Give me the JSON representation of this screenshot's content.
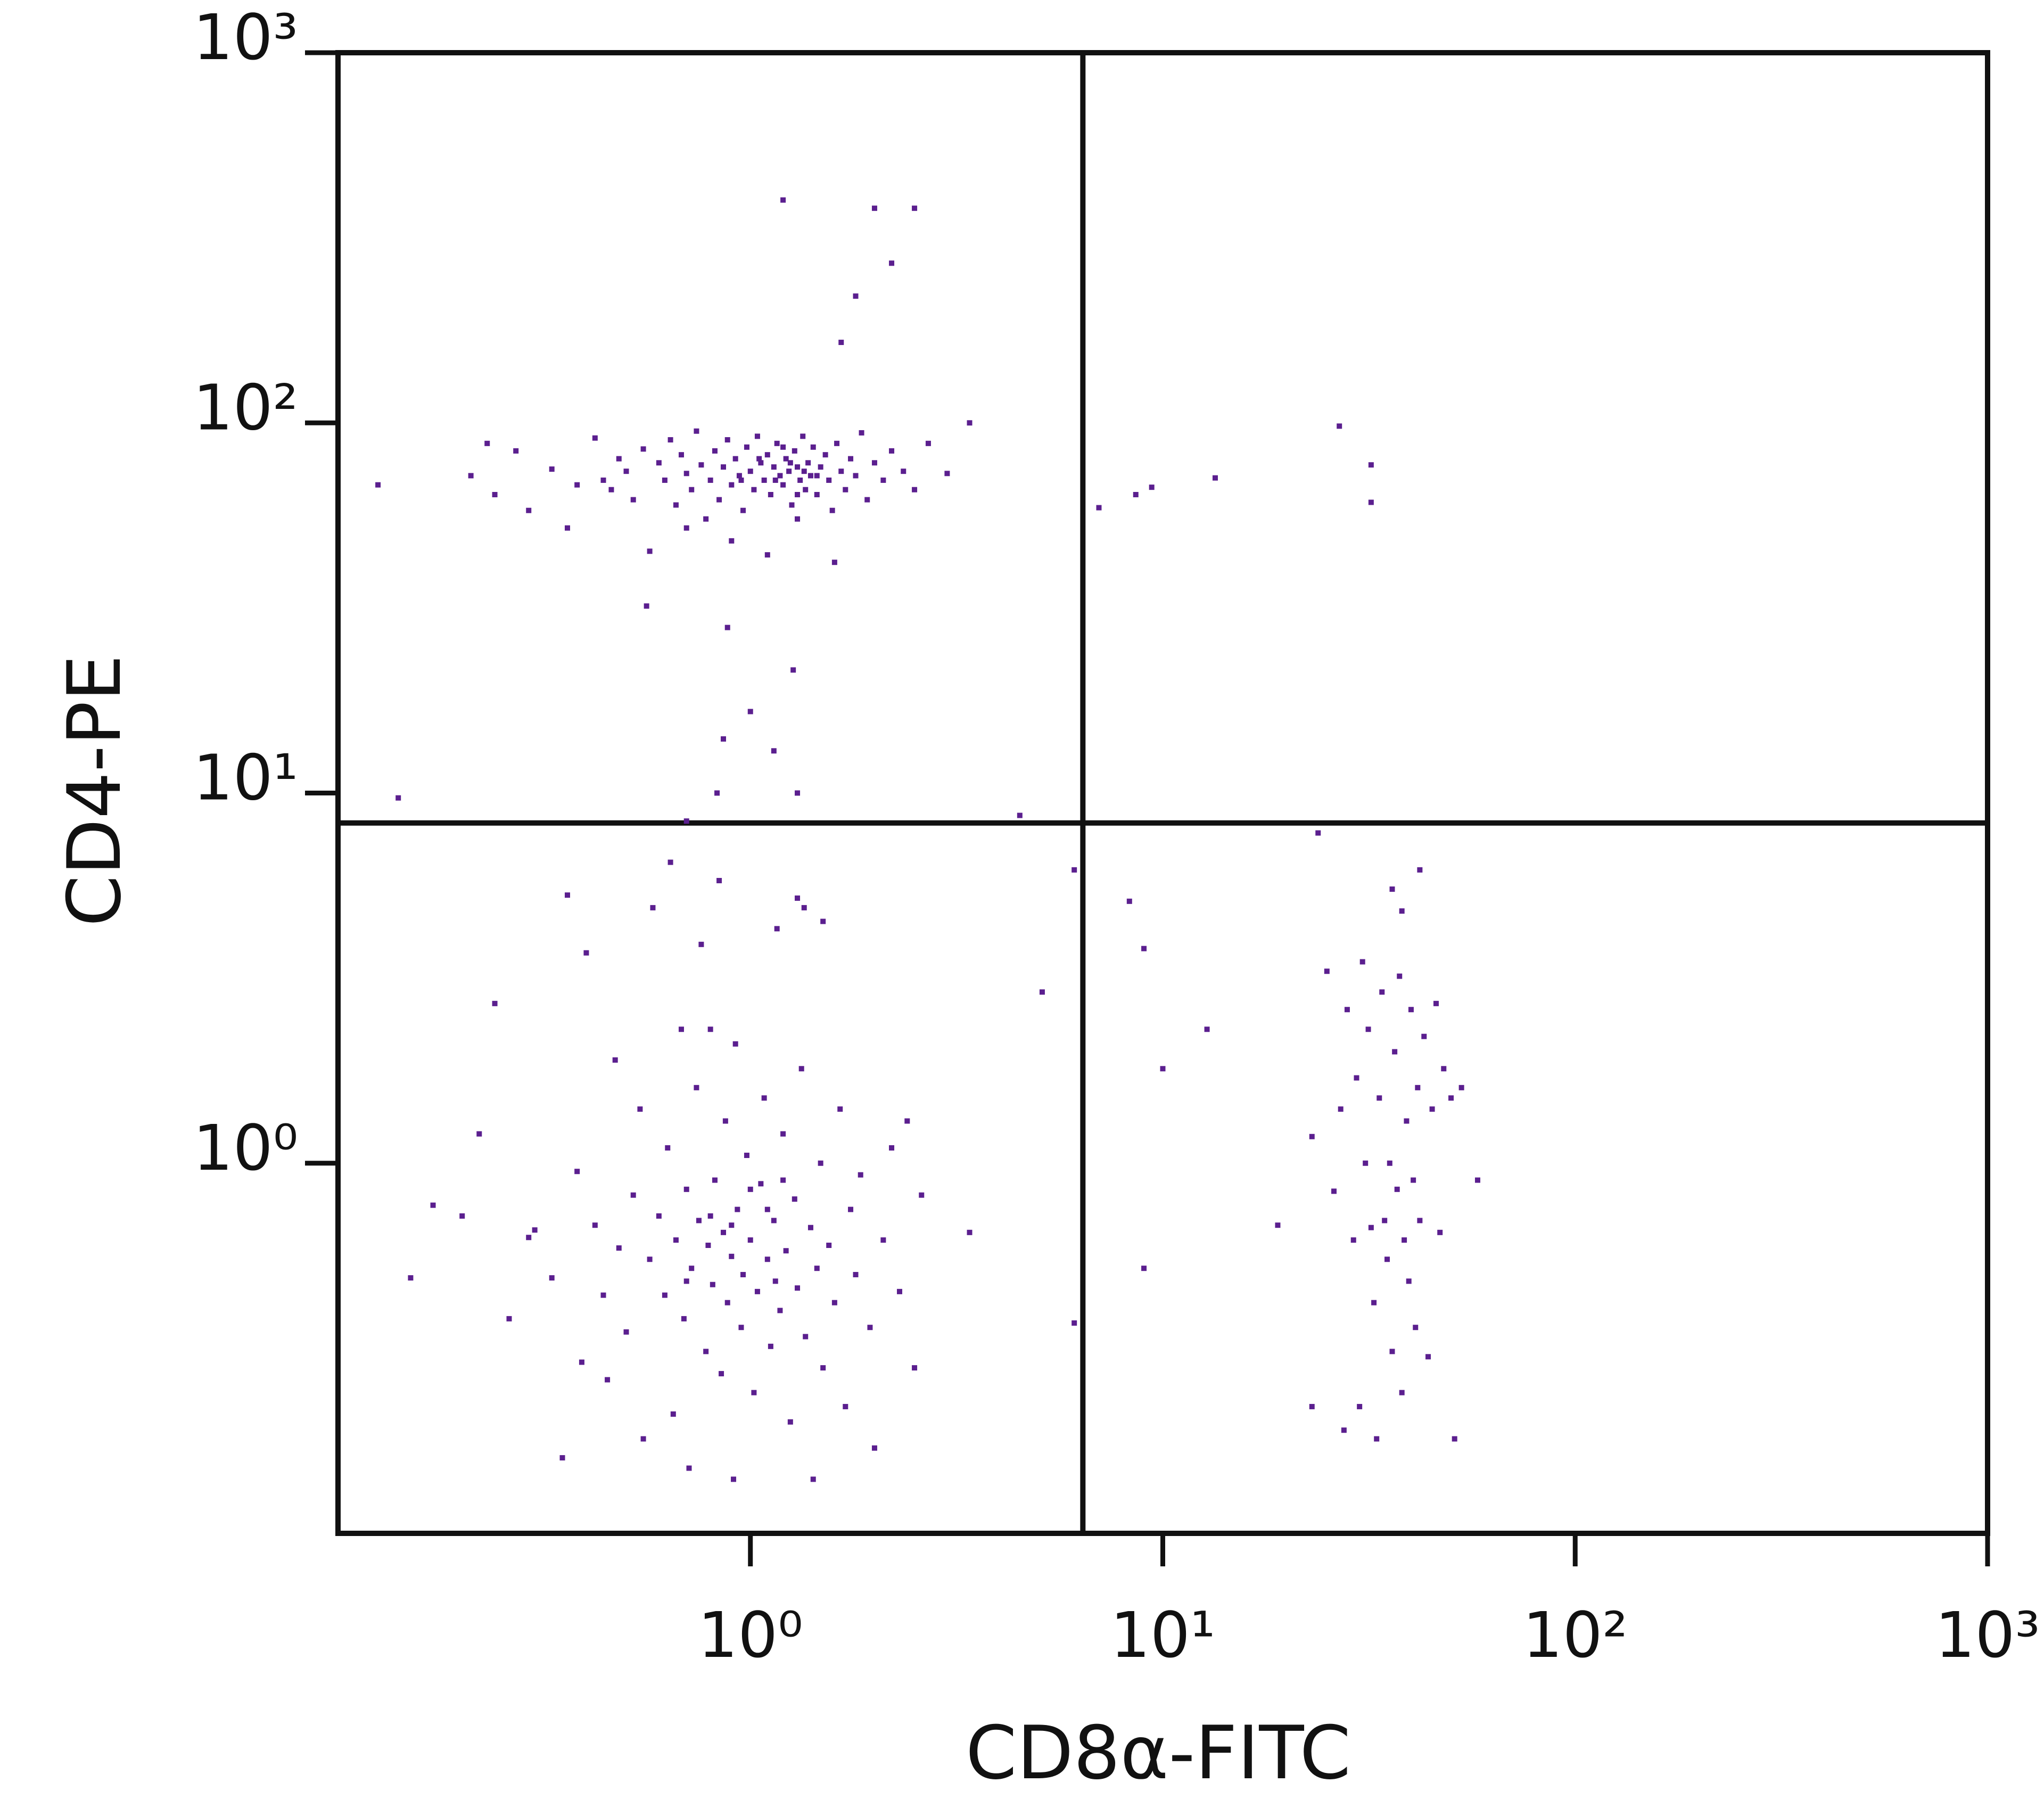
{
  "chart_data": {
    "type": "scatter",
    "x_label": "CD8α-FITC",
    "y_label": "CD4-PE",
    "xlim": [
      0.1,
      1000
    ],
    "ylim": [
      0.1,
      1000
    ],
    "xlog": true,
    "ylog": true,
    "xticks": [
      {
        "value": 1,
        "label": "10⁰"
      },
      {
        "value": 10,
        "label": "10¹"
      },
      {
        "value": 100,
        "label": "10²"
      },
      {
        "value": 1000,
        "label": "10³"
      }
    ],
    "yticks": [
      {
        "value": 1,
        "label": "10⁰"
      },
      {
        "value": 10,
        "label": "10¹"
      },
      {
        "value": 100,
        "label": "10²"
      },
      {
        "value": 1000,
        "label": "10³"
      }
    ],
    "gates": {
      "x": 6.4,
      "y": 8.3
    },
    "color": "#5b1f8f",
    "x": [
      0.21,
      0.23,
      0.24,
      0.27,
      0.29,
      0.33,
      0.36,
      0.38,
      0.42,
      0.44,
      0.46,
      0.48,
      0.5,
      0.52,
      0.55,
      0.57,
      0.6,
      0.62,
      0.64,
      0.66,
      0.68,
      0.7,
      0.72,
      0.74,
      0.76,
      0.78,
      0.8,
      0.82,
      0.84,
      0.86,
      0.88,
      0.9,
      0.92,
      0.94,
      0.96,
      0.98,
      1.0,
      1.02,
      1.04,
      1.06,
      1.08,
      1.1,
      1.12,
      1.14,
      1.16,
      1.18,
      1.2,
      1.22,
      1.24,
      1.26,
      1.28,
      1.3,
      1.32,
      1.34,
      1.36,
      1.38,
      1.4,
      1.42,
      1.45,
      1.48,
      1.52,
      1.55,
      1.58,
      1.62,
      1.66,
      1.7,
      1.75,
      1.8,
      1.86,
      1.92,
      2.0,
      2.1,
      2.2,
      2.35,
      2.5,
      2.7,
      3.0,
      0.56,
      0.7,
      0.9,
      1.1,
      1.3,
      1.6,
      1.15,
      1.25,
      1.35,
      1.05,
      0.95,
      1.45,
      1.2,
      1.3,
      1.2,
      2.0,
      2.5,
      2.2,
      1.8,
      1.66,
      3.4,
      0.125,
      0.14,
      0.88,
      1.0,
      1.27,
      1.14,
      0.86,
      1.3,
      0.83,
      4.5,
      0.7,
      0.15,
      0.17,
      0.2,
      0.22,
      0.24,
      0.26,
      0.29,
      0.3,
      0.33,
      0.35,
      0.36,
      0.38,
      0.39,
      0.4,
      0.42,
      0.44,
      0.45,
      0.47,
      0.48,
      0.5,
      0.52,
      0.54,
      0.55,
      0.57,
      0.58,
      0.6,
      0.62,
      0.63,
      0.64,
      0.65,
      0.66,
      0.68,
      0.69,
      0.7,
      0.71,
      0.72,
      0.74,
      0.75,
      0.76,
      0.78,
      0.79,
      0.8,
      0.81,
      0.82,
      0.84,
      0.85,
      0.86,
      0.87,
      0.88,
      0.9,
      0.91,
      0.92,
      0.93,
      0.95,
      0.96,
      0.98,
      1.0,
      1.02,
      1.04,
      1.06,
      1.08,
      1.1,
      1.12,
      1.14,
      1.16,
      1.18,
      1.2,
      1.22,
      1.25,
      1.28,
      1.3,
      1.33,
      1.36,
      1.4,
      1.42,
      1.45,
      1.48,
      1.5,
      1.55,
      1.6,
      1.65,
      1.7,
      1.75,
      1.8,
      1.85,
      1.95,
      2.0,
      2.1,
      2.2,
      2.3,
      2.4,
      2.5,
      2.6,
      3.4,
      1.3,
      1.35,
      1.5,
      1.2,
      1.1,
      1.0,
      0.9,
      0.8,
      0.7,
      1.15,
      23,
      25,
      26,
      27,
      27.5,
      28,
      29,
      29.5,
      30,
      30.5,
      31,
      31.5,
      32,
      32.5,
      33,
      33.5,
      34,
      34.5,
      35,
      35.5,
      36,
      36.5,
      37,
      37.5,
      38,
      38.5,
      39,
      39.5,
      40,
      40.5,
      41,
      41.5,
      42,
      43,
      44,
      45,
      46,
      47,
      48,
      50,
      51,
      53,
      58,
      23.8,
      42,
      36,
      38,
      8.3,
      9,
      12.8,
      10,
      9,
      19,
      23,
      6.1,
      6.1,
      5.1,
      7.0,
      8.6,
      9.4,
      13.4,
      26.8,
      32,
      32
    ],
    "values": [
      72,
      88,
      64,
      84,
      58,
      75,
      52,
      68,
      91,
      70,
      66,
      80,
      74,
      62,
      85,
      45,
      78,
      70,
      90,
      60,
      82,
      73,
      66,
      95,
      77,
      55,
      70,
      84,
      62,
      76,
      90,
      68,
      80,
      72,
      58,
      86,
      74,
      66,
      92,
      78,
      70,
      82,
      64,
      76,
      88,
      72,
      68,
      80,
      74,
      60,
      84,
      76,
      70,
      92,
      66,
      78,
      72,
      86,
      64,
      76,
      82,
      70,
      58,
      88,
      74,
      66,
      80,
      72,
      94,
      62,
      78,
      70,
      84,
      74,
      66,
      88,
      73,
      32,
      52,
      48,
      44,
      55,
      42,
      70,
      78,
      74,
      80,
      70,
      72,
      86,
      64,
      400,
      380,
      380,
      270,
      220,
      165,
      100,
      68,
      9.7,
      28,
      16.6,
      21.5,
      13,
      14,
      10,
      10,
      8.7,
      8.4,
      0.49,
      0.77,
      0.72,
      1.2,
      2.7,
      0.38,
      0.63,
      0.66,
      0.49,
      0.16,
      5.3,
      0.95,
      0.29,
      3.7,
      0.68,
      0.44,
      0.26,
      1.9,
      0.59,
      0.35,
      0.82,
      1.4,
      0.18,
      0.55,
      4.9,
      0.72,
      0.44,
      1.1,
      6.5,
      0.21,
      0.62,
      2.3,
      0.38,
      0.85,
      0.15,
      0.52,
      1.6,
      0.7,
      3.9,
      0.31,
      0.6,
      2.3,
      0.47,
      0.9,
      5.8,
      0.27,
      0.65,
      1.3,
      0.42,
      0.56,
      0.14,
      2.1,
      0.75,
      0.36,
      0.5,
      1.05,
      0.62,
      0.24,
      0.45,
      0.88,
      1.5,
      0.55,
      0.32,
      0.7,
      4.3,
      0.4,
      1.2,
      0.58,
      0.2,
      0.8,
      0.46,
      1.8,
      0.34,
      0.67,
      0.14,
      0.52,
      1.0,
      0.28,
      0.6,
      0.42,
      1.4,
      0.22,
      0.75,
      0.5,
      0.93,
      0.36,
      0.17,
      0.62,
      1.1,
      0.45,
      1.3,
      0.28,
      0.82,
      0.65,
      5.2,
      4.9,
      4.5,
      0.9,
      0.75,
      0.85,
      0.68,
      0.72,
      0.48,
      0.48,
      0.22,
      3.3,
      0.84,
      1.4,
      0.19,
      2.6,
      0.62,
      1.7,
      0.22,
      3.5,
      1.0,
      2.3,
      0.67,
      0.42,
      0.18,
      1.5,
      2.9,
      0.7,
      0.55,
      1.0,
      0.31,
      2.0,
      0.85,
      3.2,
      0.24,
      0.62,
      1.3,
      0.48,
      2.6,
      0.9,
      0.36,
      1.6,
      0.7,
      2.2,
      0.3,
      1.4,
      2.7,
      0.65,
      1.8,
      1.5,
      0.18,
      1.6,
      0.9,
      7.8,
      6.2,
      5.5,
      4.8,
      5.1,
      3.8,
      2.3,
      1.8,
      0.52,
      0.68,
      1.18,
      6.2,
      0.37,
      2.9,
      59,
      64,
      67,
      71,
      98,
      77,
      61
    ]
  }
}
